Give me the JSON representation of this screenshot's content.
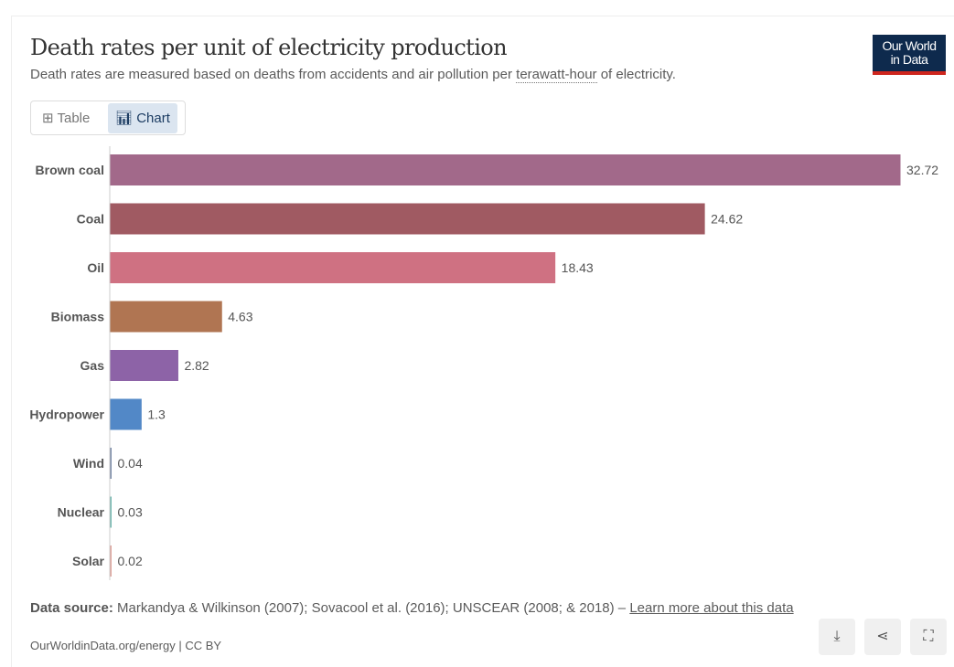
{
  "header": {
    "title": "Death rates per unit of electricity production",
    "subtitle_pre": "Death rates are measured based on deaths from accidents and air pollution per ",
    "subtitle_link": "terawatt-hour",
    "subtitle_post": " of electricity.",
    "logo_line1": "Our World",
    "logo_line2": "in Data"
  },
  "tabs": {
    "table": "Table",
    "chart": "Chart"
  },
  "chart_data": {
    "type": "bar",
    "orientation": "horizontal",
    "title": "Death rates per unit of electricity production",
    "categories": [
      "Brown coal",
      "Coal",
      "Oil",
      "Biomass",
      "Gas",
      "Hydropower",
      "Wind",
      "Nuclear",
      "Solar"
    ],
    "values": [
      32.72,
      24.62,
      18.43,
      4.63,
      2.82,
      1.3,
      0.04,
      0.03,
      0.02
    ],
    "colors": [
      "#a2698a",
      "#a05a62",
      "#cf7182",
      "#b07552",
      "#8d63a7",
      "#5288c7",
      "#7a8aa8",
      "#72b8b0",
      "#e0a49c"
    ],
    "xlim": [
      0,
      32.72
    ],
    "grid": false
  },
  "footer": {
    "source_label": "Data source:",
    "source_text": " Markandya & Wilkinson (2007); Sovacool et al. (2016); UNSCEAR (2008; & 2018) – ",
    "learn_more": "Learn more about this data",
    "url": "OurWorldinData.org/energy | CC BY"
  },
  "icons": [
    "download-icon",
    "share-icon",
    "fullscreen-icon"
  ]
}
